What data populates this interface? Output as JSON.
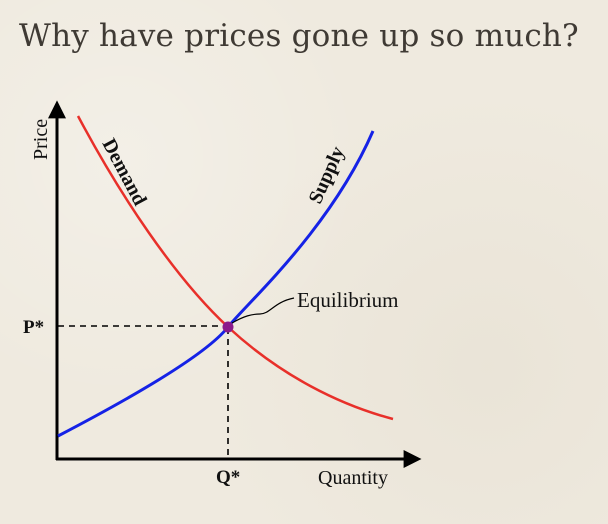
{
  "slide": {
    "title": "Why have prices gone up so much?"
  },
  "diagram": {
    "y_axis_label": "Price",
    "x_axis_label": "Quantity",
    "demand_label": "Demand",
    "supply_label": "Supply",
    "equilibrium_label": "Equilibrium",
    "price_marker": "P*",
    "quantity_marker": "Q*",
    "colors": {
      "demand": "#e8302a",
      "supply": "#1522e6",
      "equilibrium_point": "#8a1a8c",
      "axis": "#000000"
    }
  }
}
